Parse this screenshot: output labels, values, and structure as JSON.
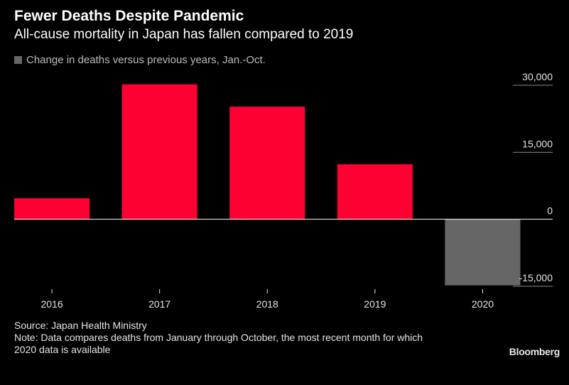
{
  "chart_data": {
    "type": "bar",
    "title": "Fewer Deaths Despite Pandemic",
    "subtitle": "All-cause mortality in Japan has fallen compared to 2019",
    "legend": "Change in deaths versus previous years, Jan.-Oct.",
    "categories": [
      "2016",
      "2017",
      "2018",
      "2019",
      "2020"
    ],
    "series": [
      {
        "name": "Change in deaths versus previous years, Jan.-Oct.",
        "values": [
          4700,
          30200,
          25200,
          12300,
          -14800
        ]
      }
    ],
    "ylim": [
      -15000,
      30000
    ],
    "yticks": [
      30000,
      15000,
      0,
      -15000
    ],
    "ytick_labels": [
      "30,000",
      "15,000",
      "0",
      "-15,000"
    ],
    "positive_color": "#ff0033",
    "negative_color": "#666666",
    "grid": false
  },
  "footer": {
    "source": "Source: Japan Health Ministry",
    "note_line1": "Note: Data compares deaths from January through October, the most recent month for which",
    "note_line2": "2020 data is available",
    "brand": "Bloomberg"
  }
}
